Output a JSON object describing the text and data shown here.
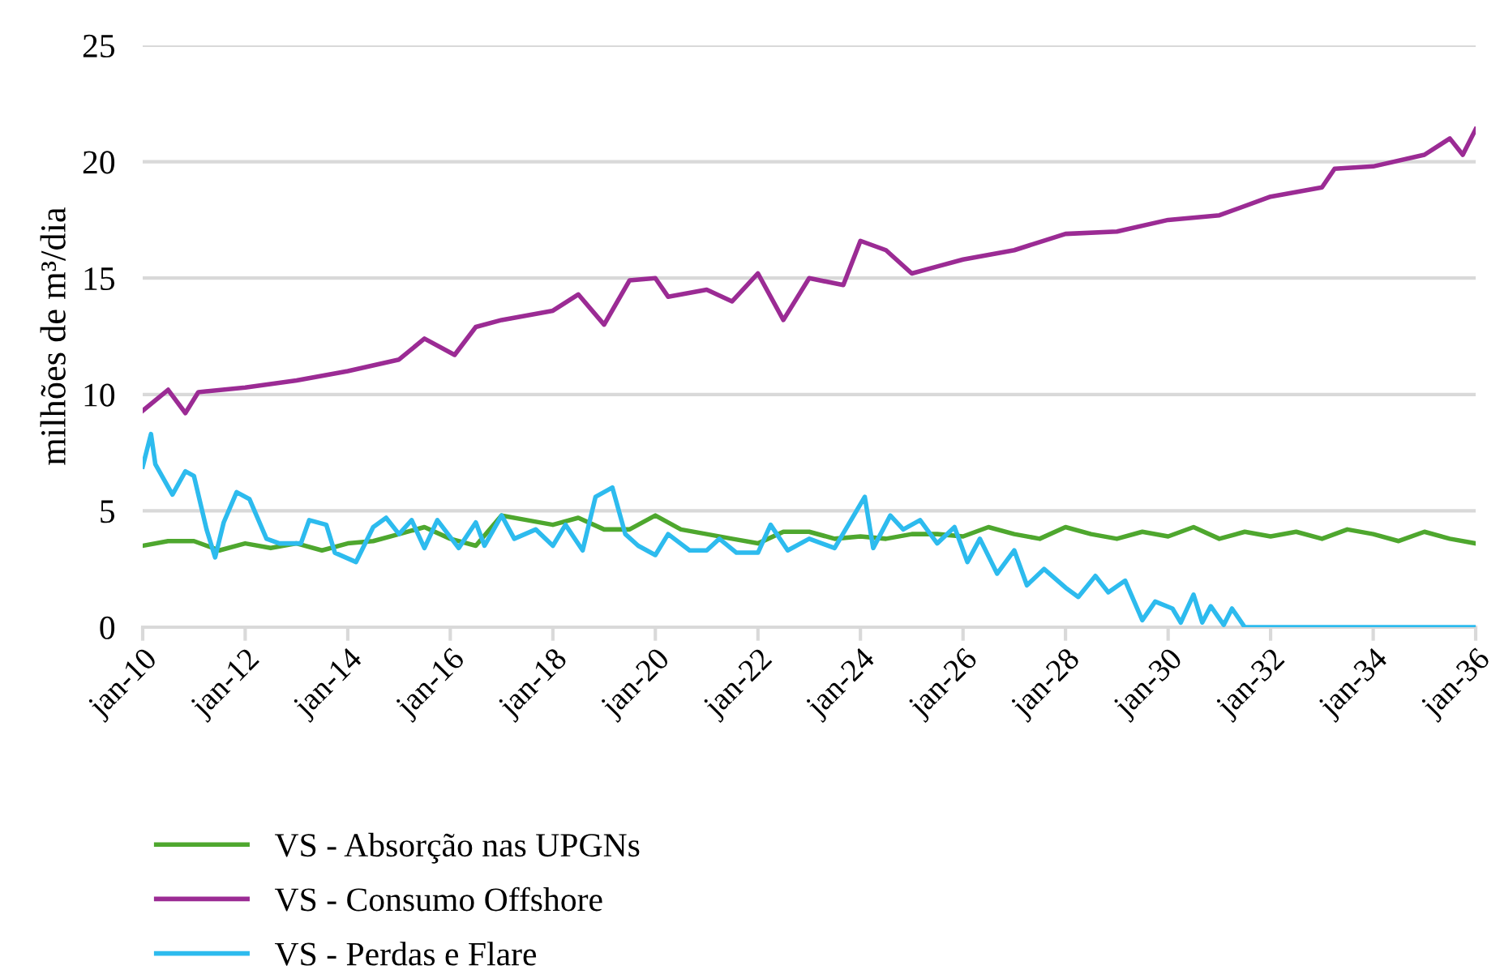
{
  "chart_data": {
    "type": "line",
    "ylabel": "milhões de m³/dia",
    "xlim": [
      "2010-01",
      "2036-01"
    ],
    "xticks": [
      {
        "value": "2010-01",
        "label": "jan-10"
      },
      {
        "value": "2012-01",
        "label": "jan-12"
      },
      {
        "value": "2014-01",
        "label": "jan-14"
      },
      {
        "value": "2016-01",
        "label": "jan-16"
      },
      {
        "value": "2018-01",
        "label": "jan-18"
      },
      {
        "value": "2020-01",
        "label": "jan-20"
      },
      {
        "value": "2022-01",
        "label": "jan-22"
      },
      {
        "value": "2024-01",
        "label": "jan-24"
      },
      {
        "value": "2026-01",
        "label": "jan-26"
      },
      {
        "value": "2028-01",
        "label": "jan-28"
      },
      {
        "value": "2030-01",
        "label": "jan-30"
      },
      {
        "value": "2032-01",
        "label": "jan-32"
      },
      {
        "value": "2034-01",
        "label": "jan-34"
      },
      {
        "value": "2036-01",
        "label": "jan-36"
      }
    ],
    "ylim": [
      0,
      25
    ],
    "yticks": [
      0,
      5,
      10,
      15,
      20,
      25
    ],
    "grid": "y",
    "legend": "bottom",
    "marker": "none",
    "line_style": "solid",
    "series": [
      {
        "name": "VS - Absorção nas UPGNs",
        "color": "#4ea72e",
        "x": [
          "2010-01",
          "2010-07",
          "2011-01",
          "2011-07",
          "2012-01",
          "2012-07",
          "2013-01",
          "2013-07",
          "2014-01",
          "2014-07",
          "2015-01",
          "2015-07",
          "2016-01",
          "2016-07",
          "2017-01",
          "2017-07",
          "2018-01",
          "2018-07",
          "2019-01",
          "2019-07",
          "2020-01",
          "2020-07",
          "2021-01",
          "2021-07",
          "2022-01",
          "2022-07",
          "2023-01",
          "2023-07",
          "2024-01",
          "2024-07",
          "2025-01",
          "2025-07",
          "2026-01",
          "2026-07",
          "2027-01",
          "2027-07",
          "2028-01",
          "2028-07",
          "2029-01",
          "2029-07",
          "2030-01",
          "2030-07",
          "2031-01",
          "2031-07",
          "2032-01",
          "2032-07",
          "2033-01",
          "2033-07",
          "2034-01",
          "2034-07",
          "2035-01",
          "2035-07",
          "2036-01"
        ],
        "values": [
          3.5,
          3.7,
          3.7,
          3.3,
          3.6,
          3.4,
          3.6,
          3.3,
          3.6,
          3.7,
          4.0,
          4.3,
          3.8,
          3.5,
          4.8,
          4.6,
          4.4,
          4.7,
          4.2,
          4.2,
          4.8,
          4.2,
          4.0,
          3.8,
          3.6,
          4.1,
          4.1,
          3.8,
          3.9,
          3.8,
          4.0,
          4.0,
          3.9,
          4.3,
          4.0,
          3.8,
          4.3,
          4.0,
          3.8,
          4.1,
          3.9,
          4.3,
          3.8,
          4.1,
          3.9,
          4.1,
          3.8,
          4.2,
          4.0,
          3.7,
          4.1,
          3.8,
          3.6
        ]
      },
      {
        "name": "VS - Consumo Offshore",
        "color": "#9b2b94",
        "x": [
          "2010-01",
          "2010-07",
          "2010-11",
          "2011-02",
          "2012-01",
          "2013-01",
          "2014-01",
          "2015-01",
          "2015-07",
          "2016-02",
          "2016-07",
          "2017-01",
          "2018-01",
          "2018-07",
          "2019-01",
          "2019-07",
          "2020-01",
          "2020-04",
          "2021-01",
          "2021-07",
          "2022-01",
          "2022-07",
          "2023-01",
          "2023-09",
          "2024-01",
          "2024-07",
          "2025-01",
          "2025-07",
          "2026-01",
          "2027-01",
          "2028-01",
          "2029-01",
          "2030-01",
          "2031-01",
          "2032-01",
          "2033-01",
          "2033-04",
          "2034-01",
          "2035-01",
          "2035-07",
          "2035-10",
          "2036-01"
        ],
        "values": [
          9.3,
          10.2,
          9.2,
          10.1,
          10.3,
          10.6,
          11.0,
          11.5,
          12.4,
          11.7,
          12.9,
          13.2,
          13.6,
          14.3,
          13.0,
          14.9,
          15.0,
          14.2,
          14.5,
          14.0,
          15.2,
          13.2,
          15.0,
          14.7,
          16.6,
          16.2,
          15.2,
          15.5,
          15.8,
          16.2,
          16.9,
          17.0,
          17.5,
          17.7,
          18.5,
          18.9,
          19.7,
          19.8,
          20.3,
          21.0,
          20.3,
          21.4
        ]
      },
      {
        "name": "VS - Perdas e Flare",
        "color": "#2dbbee",
        "x": [
          "2010-01",
          "2010-03",
          "2010-04",
          "2010-08",
          "2010-11",
          "2011-01",
          "2011-04",
          "2011-06",
          "2011-08",
          "2011-11",
          "2012-02",
          "2012-06",
          "2012-09",
          "2013-02",
          "2013-04",
          "2013-08",
          "2013-10",
          "2014-03",
          "2014-07",
          "2014-10",
          "2015-01",
          "2015-04",
          "2015-07",
          "2015-10",
          "2016-03",
          "2016-07",
          "2016-09",
          "2017-01",
          "2017-04",
          "2017-09",
          "2018-01",
          "2018-04",
          "2018-08",
          "2018-11",
          "2019-03",
          "2019-06",
          "2019-09",
          "2020-01",
          "2020-04",
          "2020-09",
          "2021-01",
          "2021-04",
          "2021-08",
          "2022-01",
          "2022-04",
          "2022-08",
          "2023-01",
          "2023-07",
          "2024-02",
          "2024-04",
          "2024-08",
          "2024-11",
          "2025-03",
          "2025-07",
          "2025-11",
          "2026-02",
          "2026-05",
          "2026-09",
          "2027-01",
          "2027-04",
          "2027-08",
          "2028-01",
          "2028-04",
          "2028-08",
          "2028-11",
          "2029-03",
          "2029-07",
          "2029-10",
          "2030-02",
          "2030-04",
          "2030-07",
          "2030-09",
          "2030-11",
          "2031-02",
          "2031-04",
          "2031-07",
          "2036-01"
        ],
        "values": [
          6.9,
          8.3,
          7.0,
          5.7,
          6.7,
          6.5,
          4.2,
          3.0,
          4.5,
          5.8,
          5.5,
          3.8,
          3.6,
          3.6,
          4.6,
          4.4,
          3.2,
          2.8,
          4.3,
          4.7,
          4.0,
          4.6,
          3.4,
          4.6,
          3.4,
          4.5,
          3.5,
          4.8,
          3.8,
          4.2,
          3.5,
          4.4,
          3.3,
          5.6,
          6.0,
          4.0,
          3.5,
          3.1,
          4.0,
          3.3,
          3.3,
          3.8,
          3.2,
          3.2,
          4.4,
          3.3,
          3.8,
          3.4,
          5.6,
          3.4,
          4.8,
          4.2,
          4.6,
          3.6,
          4.3,
          2.8,
          3.8,
          2.3,
          3.3,
          1.8,
          2.5,
          1.7,
          1.3,
          2.2,
          1.5,
          2.0,
          0.3,
          1.1,
          0.8,
          0.2,
          1.4,
          0.2,
          0.9,
          0.1,
          0.8,
          0,
          0
        ]
      }
    ]
  }
}
